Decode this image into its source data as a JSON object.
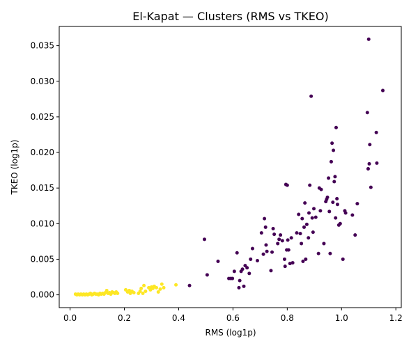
{
  "chart_data": {
    "type": "scatter",
    "title": "El-Kapat — Clusters (RMS vs TKEO)",
    "xlabel": "RMS (log1p)",
    "ylabel": "TKEO (log1p)",
    "xlim": [
      -0.04,
      1.22
    ],
    "ylim": [
      -0.0018,
      0.0377
    ],
    "x_ticks": [
      0.0,
      0.2,
      0.4,
      0.6,
      0.8,
      1.0,
      1.2
    ],
    "x_tick_labels": [
      "0.0",
      "0.2",
      "0.4",
      "0.6",
      "0.8",
      "1.0",
      "1.2"
    ],
    "y_ticks": [
      0.0,
      0.005,
      0.01,
      0.015,
      0.02,
      0.025,
      0.03,
      0.035
    ],
    "y_tick_labels": [
      "0.000",
      "0.005",
      "0.010",
      "0.015",
      "0.020",
      "0.025",
      "0.030",
      "0.035"
    ],
    "grid": false,
    "legend": "none",
    "series": [
      {
        "color": "#440154",
        "points": [
          [
            0.44,
            0.0013
          ],
          [
            0.495,
            0.0078
          ],
          [
            0.505,
            0.0028
          ],
          [
            0.545,
            0.0047
          ],
          [
            0.585,
            0.0023
          ],
          [
            0.592,
            0.0023
          ],
          [
            0.598,
            0.0023
          ],
          [
            0.605,
            0.0033
          ],
          [
            0.615,
            0.0059
          ],
          [
            0.622,
            0.001
          ],
          [
            0.625,
            0.002
          ],
          [
            0.63,
            0.0033
          ],
          [
            0.635,
            0.0036
          ],
          [
            0.64,
            0.0012
          ],
          [
            0.645,
            0.0041
          ],
          [
            0.652,
            0.0038
          ],
          [
            0.66,
            0.003
          ],
          [
            0.665,
            0.005
          ],
          [
            0.672,
            0.0065
          ],
          [
            0.69,
            0.0048
          ],
          [
            0.705,
            0.0087
          ],
          [
            0.712,
            0.0057
          ],
          [
            0.716,
            0.0107
          ],
          [
            0.72,
            0.0095
          ],
          [
            0.722,
            0.007
          ],
          [
            0.725,
            0.0061
          ],
          [
            0.74,
            0.0034
          ],
          [
            0.744,
            0.006
          ],
          [
            0.748,
            0.0093
          ],
          [
            0.752,
            0.0085
          ],
          [
            0.765,
            0.0072
          ],
          [
            0.77,
            0.0078
          ],
          [
            0.775,
            0.0084
          ],
          [
            0.782,
            0.0076
          ],
          [
            0.79,
            0.005
          ],
          [
            0.792,
            0.004
          ],
          [
            0.795,
            0.0155
          ],
          [
            0.798,
            0.0063
          ],
          [
            0.8,
            0.0154
          ],
          [
            0.802,
            0.0077
          ],
          [
            0.805,
            0.0063
          ],
          [
            0.81,
            0.0044
          ],
          [
            0.815,
            0.008
          ],
          [
            0.82,
            0.0045
          ],
          [
            0.835,
            0.0087
          ],
          [
            0.842,
            0.0113
          ],
          [
            0.848,
            0.0086
          ],
          [
            0.852,
            0.0072
          ],
          [
            0.855,
            0.0107
          ],
          [
            0.858,
            0.0047
          ],
          [
            0.862,
            0.0095
          ],
          [
            0.865,
            0.0129
          ],
          [
            0.868,
            0.005
          ],
          [
            0.872,
            0.0099
          ],
          [
            0.878,
            0.008
          ],
          [
            0.88,
            0.0115
          ],
          [
            0.883,
            0.0154
          ],
          [
            0.888,
            0.0279
          ],
          [
            0.892,
            0.0108
          ],
          [
            0.895,
            0.0088
          ],
          [
            0.898,
            0.0121
          ],
          [
            0.905,
            0.0109
          ],
          [
            0.915,
            0.0058
          ],
          [
            0.918,
            0.015
          ],
          [
            0.922,
            0.0118
          ],
          [
            0.925,
            0.0148
          ],
          [
            0.935,
            0.0072
          ],
          [
            0.942,
            0.0131
          ],
          [
            0.945,
            0.0134
          ],
          [
            0.948,
            0.0137
          ],
          [
            0.952,
            0.0164
          ],
          [
            0.955,
            0.0117
          ],
          [
            0.958,
            0.0058
          ],
          [
            0.962,
            0.0187
          ],
          [
            0.965,
            0.0213
          ],
          [
            0.968,
            0.013
          ],
          [
            0.97,
            0.0203
          ],
          [
            0.973,
            0.0159
          ],
          [
            0.976,
            0.0166
          ],
          [
            0.978,
            0.0108
          ],
          [
            0.98,
            0.0235
          ],
          [
            0.983,
            0.0135
          ],
          [
            0.985,
            0.0127
          ],
          [
            0.99,
            0.0098
          ],
          [
            0.995,
            0.01
          ],
          [
            1.005,
            0.005
          ],
          [
            1.012,
            0.0118
          ],
          [
            1.015,
            0.0115
          ],
          [
            1.04,
            0.0112
          ],
          [
            1.05,
            0.0084
          ],
          [
            1.058,
            0.0128
          ],
          [
            1.095,
            0.0256
          ],
          [
            1.098,
            0.0177
          ],
          [
            1.1,
            0.0359
          ],
          [
            1.102,
            0.0184
          ],
          [
            1.104,
            0.0211
          ],
          [
            1.108,
            0.0151
          ],
          [
            1.128,
            0.0228
          ],
          [
            1.13,
            0.0185
          ],
          [
            1.152,
            0.0287
          ]
        ]
      },
      {
        "color": "#fde725",
        "points": [
          [
            0.02,
            0.0001
          ],
          [
            0.025,
            0.0
          ],
          [
            0.03,
            0.0001
          ],
          [
            0.035,
            0.0
          ],
          [
            0.04,
            0.0001
          ],
          [
            0.045,
            0.0
          ],
          [
            0.05,
            0.0001
          ],
          [
            0.055,
            0.0
          ],
          [
            0.06,
            0.0001
          ],
          [
            0.065,
            0.0
          ],
          [
            0.07,
            0.0001
          ],
          [
            0.075,
            0.0002
          ],
          [
            0.08,
            0.0
          ],
          [
            0.085,
            0.0001
          ],
          [
            0.09,
            0.0002
          ],
          [
            0.095,
            0.0001
          ],
          [
            0.1,
            0.0001
          ],
          [
            0.105,
            0.0
          ],
          [
            0.11,
            0.0002
          ],
          [
            0.115,
            0.0001
          ],
          [
            0.12,
            0.0002
          ],
          [
            0.125,
            0.0001
          ],
          [
            0.13,
            0.0003
          ],
          [
            0.135,
            0.0006
          ],
          [
            0.14,
            0.0002
          ],
          [
            0.145,
            0.0003
          ],
          [
            0.15,
            0.0001
          ],
          [
            0.155,
            0.0004
          ],
          [
            0.16,
            0.0003
          ],
          [
            0.165,
            0.0002
          ],
          [
            0.17,
            0.0004
          ],
          [
            0.175,
            0.0002
          ],
          [
            0.205,
            0.0007
          ],
          [
            0.212,
            0.0004
          ],
          [
            0.218,
            0.0006
          ],
          [
            0.222,
            0.0002
          ],
          [
            0.228,
            0.0005
          ],
          [
            0.235,
            0.0003
          ],
          [
            0.252,
            0.0002
          ],
          [
            0.258,
            0.0005
          ],
          [
            0.262,
            0.0009
          ],
          [
            0.268,
            0.0002
          ],
          [
            0.272,
            0.0013
          ],
          [
            0.278,
            0.0005
          ],
          [
            0.29,
            0.001
          ],
          [
            0.296,
            0.0007
          ],
          [
            0.3,
            0.0011
          ],
          [
            0.305,
            0.0009
          ],
          [
            0.31,
            0.0012
          ],
          [
            0.318,
            0.001
          ],
          [
            0.325,
            0.0004
          ],
          [
            0.332,
            0.0008
          ],
          [
            0.338,
            0.0015
          ],
          [
            0.345,
            0.001
          ],
          [
            0.39,
            0.0014
          ]
        ]
      }
    ]
  }
}
